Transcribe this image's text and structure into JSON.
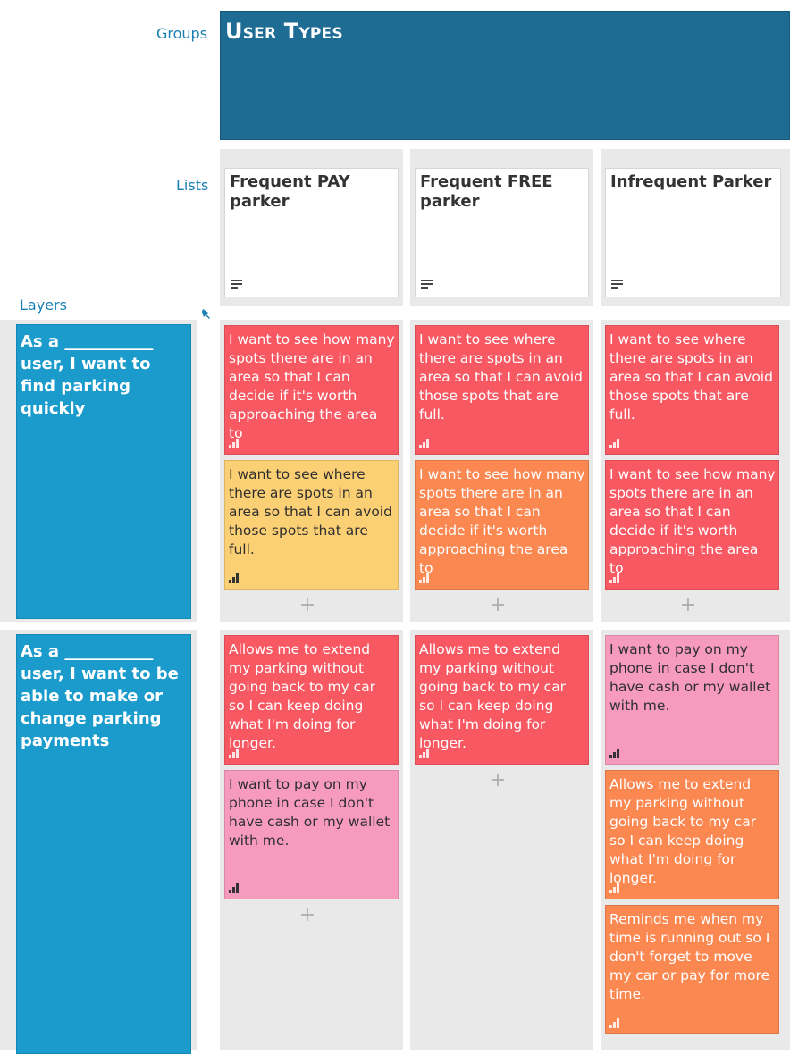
{
  "labels": {
    "groups": "Groups",
    "lists": "Lists",
    "layers": "Layers"
  },
  "group": {
    "title": "User Types"
  },
  "lists": [
    {
      "title": "Frequent PAY parker"
    },
    {
      "title": "Frequent FREE parker"
    },
    {
      "title": "Infrequent Parker"
    }
  ],
  "layers": [
    {
      "title": "As a ___________ user, I want to find parking quickly"
    },
    {
      "title": "As a ___________ user, I want to be able to make or change parking payments"
    }
  ],
  "cards": {
    "r1c1a": "I want to see how many spots there are in an area so that I can decide if it's worth approaching the area to",
    "r1c1b": "I want to see where there are spots in an area so that I can avoid those spots that are full.",
    "r1c2a": "I want to see where there are spots in an area so that I can avoid those spots that are full.",
    "r1c2b": "I want to see how many spots there are in an area so that I can decide if it's worth approaching the area to",
    "r1c3a": "I want to see where there are spots in an area so that I can avoid those spots that are full.",
    "r1c3b": "I want to see how many spots there are in an area so that I can decide if it's worth approaching the area to",
    "r2c1a": "Allows me to extend my parking without going back to my car so I can keep doing what I'm doing for longer.",
    "r2c1b": "I want to pay on my phone in case I don't have cash or my wallet with me.",
    "r2c2a": "Allows me to extend my parking without going back to my car so I can keep doing what I'm doing for longer.",
    "r2c3a": "I want to pay on my phone in case I don't have cash or my wallet with me.",
    "r2c3b": "Allows me to extend my parking without going back to my car so I can keep doing what I'm doing for longer.",
    "r2c3c": "Reminds me when my time is running out so I don't forget to move my car or pay for more time."
  },
  "add_symbol": "+",
  "colors": {
    "red": "#f85862",
    "orange": "#fb8751",
    "yellow": "#fbcf74",
    "pink": "#f69bbe",
    "layer": "#1a9bcc",
    "group": "#1e6b94"
  },
  "icons": {
    "list_details": "lines-icon",
    "priority": "signal-bars-icon",
    "pin": "pin-icon",
    "add": "plus-icon"
  }
}
